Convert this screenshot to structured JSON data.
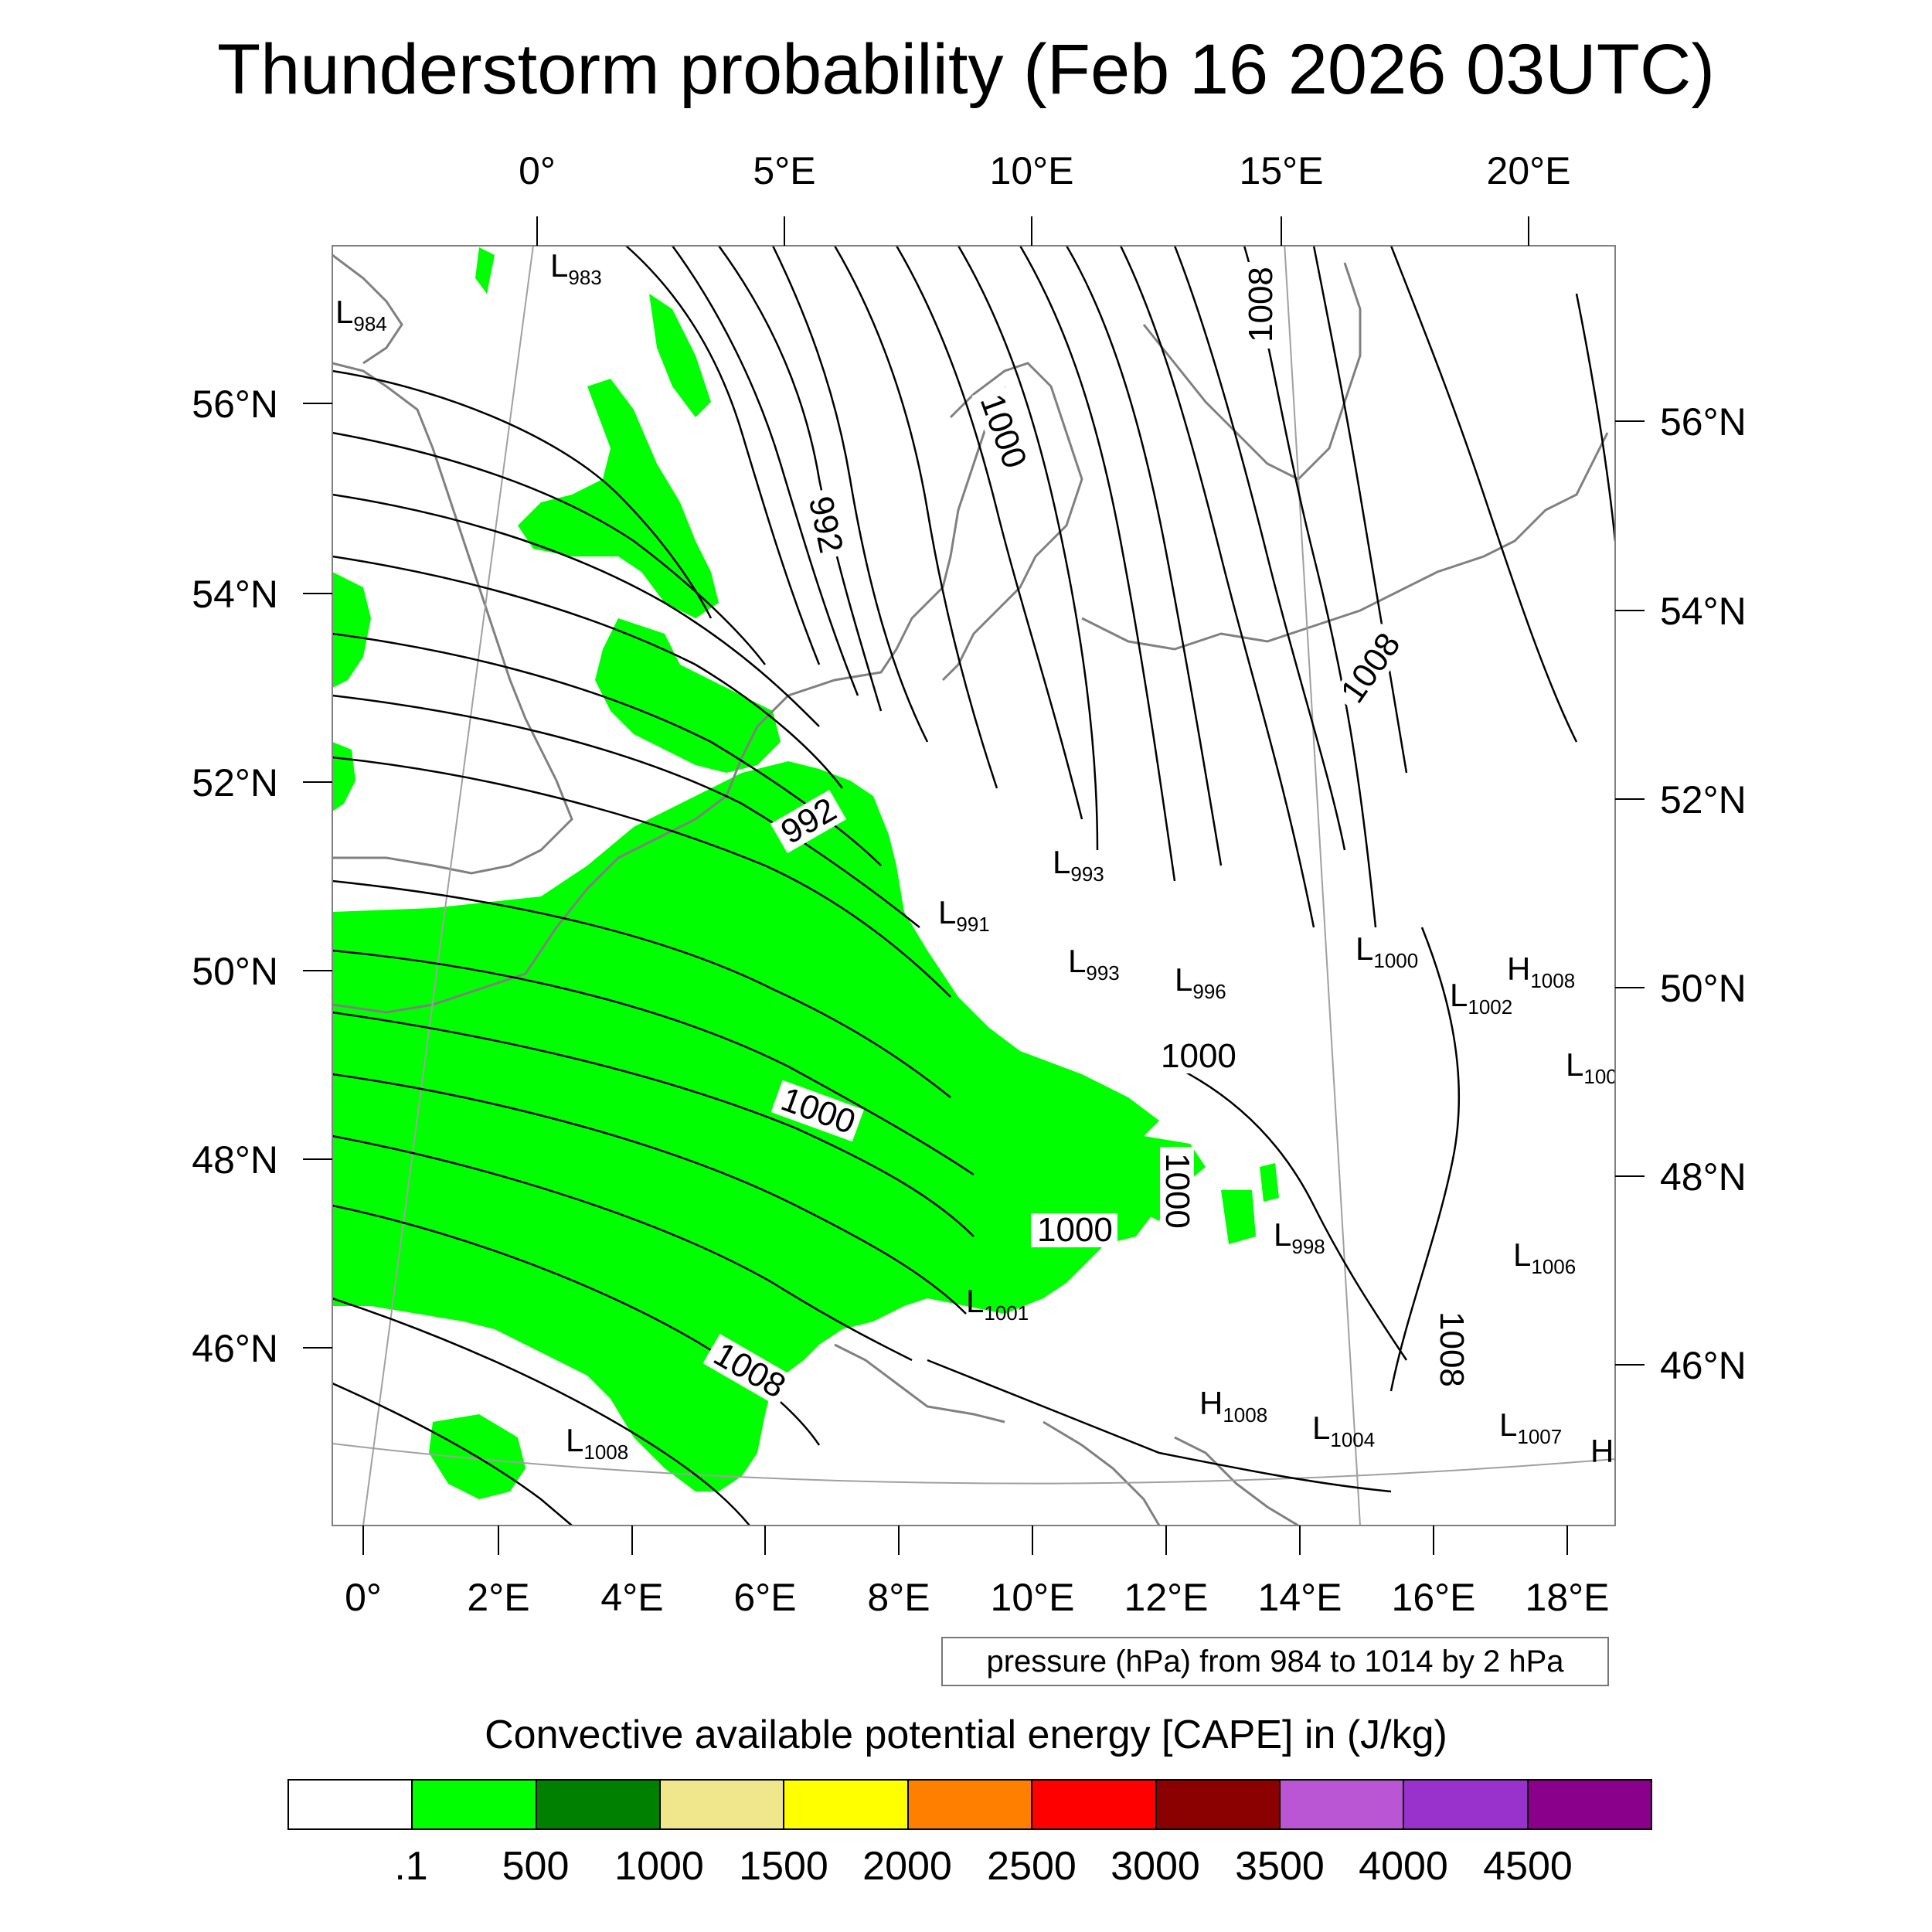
{
  "title": "Thunderstorm probability (Feb 16 2026 03UTC)",
  "map": {
    "top_lon_labels": [
      "0°",
      "5°E",
      "10°E",
      "15°E",
      "20°E"
    ],
    "bottom_lon_labels": [
      "0°",
      "2°E",
      "4°E",
      "6°E",
      "8°E",
      "10°E",
      "12°E",
      "14°E",
      "16°E",
      "18°E"
    ],
    "left_lat_labels": [
      "56°N",
      "54°N",
      "52°N",
      "50°N",
      "48°N",
      "46°N"
    ],
    "right_lat_labels": [
      "56°N",
      "54°N",
      "52°N",
      "50°N",
      "48°N",
      "46°N"
    ],
    "isobar_labels": [
      "992",
      "992",
      "1000",
      "1000",
      "1000",
      "1000",
      "1000",
      "1008",
      "1008",
      "1008",
      "1008"
    ],
    "pressure_centers": [
      {
        "type": "L",
        "value": "983"
      },
      {
        "type": "L",
        "value": "984"
      },
      {
        "type": "L",
        "value": "993"
      },
      {
        "type": "L",
        "value": "991"
      },
      {
        "type": "L",
        "value": "993"
      },
      {
        "type": "L",
        "value": "996"
      },
      {
        "type": "L",
        "value": "1000"
      },
      {
        "type": "H",
        "value": "1008"
      },
      {
        "type": "L",
        "value": "1002"
      },
      {
        "type": "L",
        "value": "100"
      },
      {
        "type": "L",
        "value": "998"
      },
      {
        "type": "L",
        "value": "1001"
      },
      {
        "type": "L",
        "value": "1006"
      },
      {
        "type": "H",
        "value": "1008"
      },
      {
        "type": "L",
        "value": "1004"
      },
      {
        "type": "L",
        "value": "1007"
      },
      {
        "type": "L",
        "value": "1008"
      },
      {
        "type": "H",
        "value": ""
      }
    ],
    "colors": {
      "cape_fill": "#00ff00",
      "coastline": "#808080",
      "isobar": "#000000",
      "grid": "#a0a0a0"
    }
  },
  "pressure_note": "pressure (hPa) from 984 to 1014 by 2 hPa",
  "colorbar": {
    "title": "Convective available potential energy [CAPE] in (J/kg)",
    "colors": [
      "#ffffff",
      "#00ff00",
      "#008000",
      "#f0e68c",
      "#ffff00",
      "#ff8000",
      "#ff0000",
      "#8b0000",
      "#ba55d3",
      "#9932cc",
      "#8b008b"
    ],
    "labels": [
      ".1",
      "500",
      "1000",
      "1500",
      "2000",
      "2500",
      "3000",
      "3500",
      "4000",
      "4500"
    ]
  }
}
